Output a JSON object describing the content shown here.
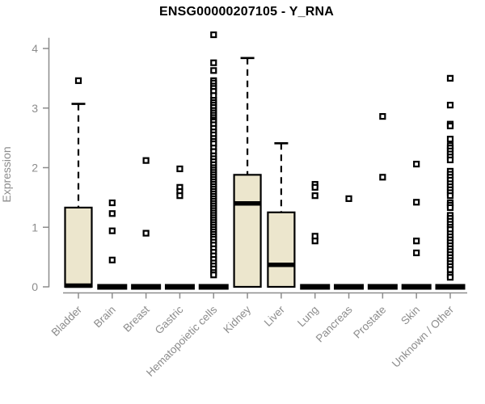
{
  "page": {
    "background": "#ffffff"
  },
  "chart_data": {
    "type": "boxplot",
    "title": "ENSG00000207105 - Y_RNA",
    "ylabel": "Expression",
    "xlabel": "",
    "ylim": [
      0,
      4.3
    ],
    "yticks": [
      0,
      1,
      2,
      3,
      4
    ],
    "grid": false,
    "legend": "none",
    "categories": [
      "Bladder",
      "Brain",
      "Breast",
      "Gastric",
      "Hematopoietic cells",
      "Kidney",
      "Liver",
      "Lung",
      "Pancreas",
      "Prostate",
      "Skin",
      "Unknown / Other"
    ],
    "series": [
      {
        "category": "Bladder",
        "q1": 0,
        "median": 0.02,
        "q3": 1.33,
        "whisker_low": 0,
        "whisker_high": 3.07,
        "outliers": [
          3.46
        ]
      },
      {
        "category": "Brain",
        "q1": 0,
        "median": 0,
        "q3": 0,
        "whisker_low": 0,
        "whisker_high": 0,
        "outliers": [
          1.41,
          1.23,
          0.94,
          0.45
        ]
      },
      {
        "category": "Breast",
        "q1": 0,
        "median": 0,
        "q3": 0,
        "whisker_low": 0,
        "whisker_high": 0,
        "outliers": [
          2.12,
          0.9
        ]
      },
      {
        "category": "Gastric",
        "q1": 0,
        "median": 0,
        "q3": 0,
        "whisker_low": 0,
        "whisker_high": 0,
        "outliers": [
          1.98,
          1.67,
          1.6,
          1.53
        ]
      },
      {
        "category": "Hematopoietic cells",
        "q1": 0,
        "median": 0,
        "q3": 0,
        "whisker_low": 0,
        "whisker_high": 0,
        "outliers": [
          4.23,
          3.76,
          3.63,
          3.46,
          3.42,
          3.37,
          3.33,
          3.28,
          3.21,
          3.13,
          3.09,
          3.05,
          3.01,
          2.96,
          2.92,
          2.88,
          2.84,
          2.8,
          2.77,
          2.72,
          2.66,
          2.6,
          2.55,
          2.49,
          2.44,
          2.4,
          2.33,
          2.27,
          2.2,
          2.15,
          2.1,
          2.05,
          2.0,
          1.96,
          1.92,
          1.88,
          1.84,
          1.8,
          1.76,
          1.72,
          1.68,
          1.64,
          1.6,
          1.56,
          1.52,
          1.48,
          1.44,
          1.4,
          1.36,
          1.32,
          1.28,
          1.24,
          1.2,
          1.16,
          1.12,
          1.08,
          1.04,
          1.0,
          0.96,
          0.92,
          0.88,
          0.84,
          0.8,
          0.75,
          0.7,
          0.64,
          0.58,
          0.52,
          0.46,
          0.4,
          0.35,
          0.3,
          0.24,
          0.2
        ]
      },
      {
        "category": "Kidney",
        "q1": 0,
        "median": 1.4,
        "q3": 1.88,
        "whisker_low": 0,
        "whisker_high": 3.84,
        "outliers": []
      },
      {
        "category": "Liver",
        "q1": 0,
        "median": 0.37,
        "q3": 1.25,
        "whisker_low": 0,
        "whisker_high": 2.41,
        "outliers": []
      },
      {
        "category": "Lung",
        "q1": 0,
        "median": 0,
        "q3": 0,
        "whisker_low": 0,
        "whisker_high": 0,
        "outliers": [
          1.72,
          1.67,
          1.53,
          0.85,
          0.77
        ]
      },
      {
        "category": "Pancreas",
        "q1": 0,
        "median": 0,
        "q3": 0,
        "whisker_low": 0,
        "whisker_high": 0,
        "outliers": [
          1.48
        ]
      },
      {
        "category": "Prostate",
        "q1": 0,
        "median": 0,
        "q3": 0,
        "whisker_low": 0,
        "whisker_high": 0,
        "outliers": [
          2.86,
          1.84
        ]
      },
      {
        "category": "Skin",
        "q1": 0,
        "median": 0,
        "q3": 0,
        "whisker_low": 0,
        "whisker_high": 0,
        "outliers": [
          2.06,
          1.42,
          0.77,
          0.57
        ]
      },
      {
        "category": "Unknown / Other",
        "q1": 0,
        "median": 0,
        "q3": 0,
        "whisker_low": 0,
        "whisker_high": 0,
        "outliers": [
          3.5,
          3.05,
          2.73,
          2.7,
          2.48,
          2.37,
          2.33,
          2.28,
          2.23,
          2.18,
          2.13,
          1.94,
          1.89,
          1.84,
          1.79,
          1.73,
          1.68,
          1.63,
          1.58,
          1.53,
          1.41,
          1.37,
          1.33,
          1.2,
          1.15,
          1.1,
          1.05,
          1.0,
          0.96,
          0.89,
          0.84,
          0.79,
          0.74,
          0.69,
          0.64,
          0.59,
          0.54,
          0.49,
          0.44,
          0.39,
          0.34,
          0.29,
          0.2,
          0.16
        ]
      }
    ],
    "style": {
      "box_fill": "#ece6cd",
      "box_stroke": "#000000",
      "median_color": "#000000",
      "whisker_color": "#000000",
      "outlier_stroke": "#000000",
      "outlier_fill": "#ffffff",
      "axis_color": "#8c8c8c",
      "tick_label_color": "#8c8c8c",
      "title_color": "#000000"
    }
  }
}
